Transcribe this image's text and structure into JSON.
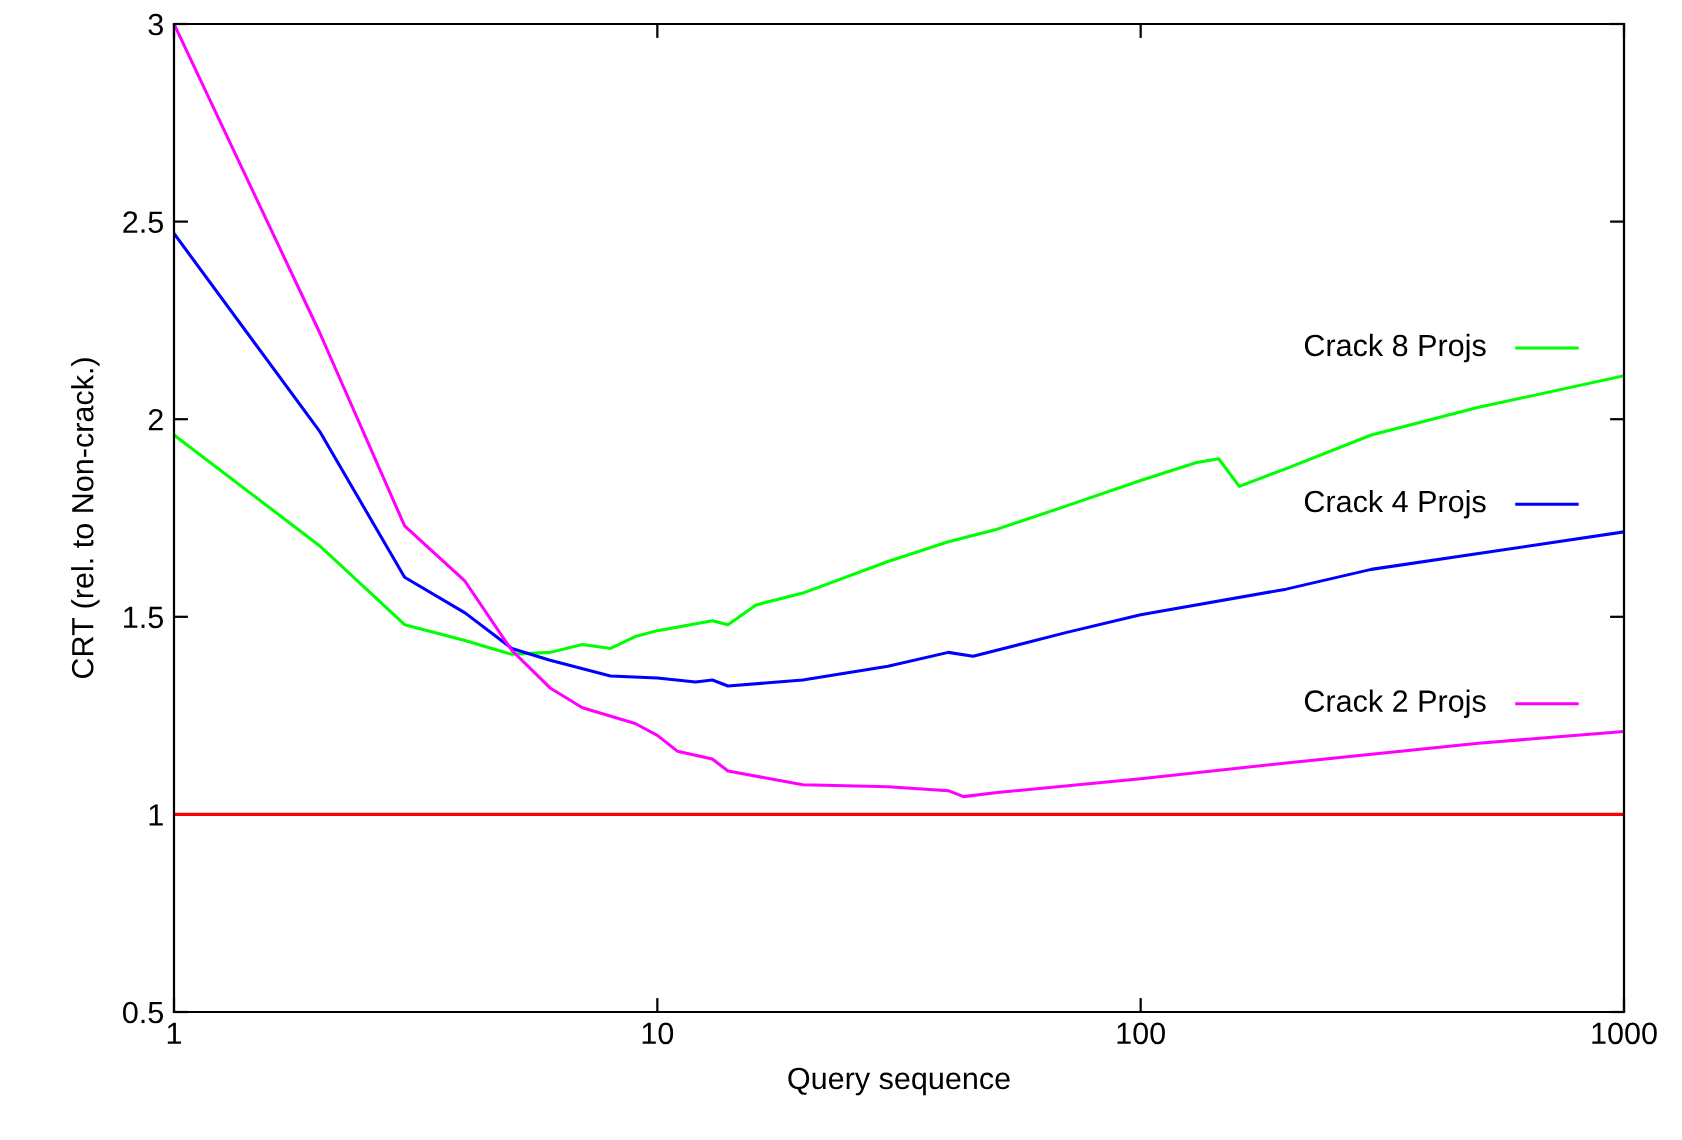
{
  "chart_data": {
    "type": "line",
    "xlabel": "Query sequence",
    "ylabel": "CRT (rel. to Non-crack.)",
    "log": "x",
    "xlim": [
      1,
      1000
    ],
    "xticks": [
      1,
      10,
      100,
      1000
    ],
    "ylim": [
      0.5,
      3
    ],
    "yticks": [
      0.5,
      1,
      1.5,
      2,
      2.5,
      3
    ],
    "grid": false,
    "legend": "right",
    "marker": "none",
    "line_style": "solid",
    "series": [
      {
        "name": "Crack 8 Projs",
        "color": "#00ff00",
        "x": [
          1,
          2,
          3,
          4,
          5,
          6,
          7,
          8,
          9,
          10,
          13,
          14,
          16,
          20,
          30,
          40,
          50,
          70,
          100,
          130,
          145,
          160,
          200,
          300,
          500,
          1000
        ],
        "values": [
          1.96,
          1.68,
          1.48,
          1.44,
          1.405,
          1.41,
          1.43,
          1.42,
          1.45,
          1.465,
          1.49,
          1.48,
          1.53,
          1.56,
          1.64,
          1.69,
          1.72,
          1.78,
          1.845,
          1.89,
          1.9,
          1.83,
          1.875,
          1.96,
          2.03,
          2.11
        ]
      },
      {
        "name": "Crack 4 Projs",
        "color": "#0000ff",
        "x": [
          1,
          2,
          3,
          4,
          5,
          6,
          8,
          10,
          12,
          13,
          14,
          20,
          30,
          40,
          45,
          70,
          100,
          200,
          300,
          500,
          1000
        ],
        "values": [
          2.47,
          1.97,
          1.6,
          1.51,
          1.42,
          1.39,
          1.35,
          1.345,
          1.335,
          1.34,
          1.325,
          1.34,
          1.375,
          1.41,
          1.4,
          1.46,
          1.505,
          1.57,
          1.62,
          1.66,
          1.715
        ]
      },
      {
        "name": "Crack 2 Projs",
        "color": "#ff00ff",
        "x": [
          1,
          2,
          3,
          4,
          5,
          6,
          7,
          9,
          10,
          11,
          13,
          14,
          20,
          30,
          40,
          43,
          50,
          100,
          200,
          500,
          1000
        ],
        "values": [
          3.0,
          2.22,
          1.73,
          1.59,
          1.415,
          1.32,
          1.27,
          1.23,
          1.2,
          1.16,
          1.14,
          1.11,
          1.075,
          1.07,
          1.06,
          1.045,
          1.055,
          1.09,
          1.13,
          1.18,
          1.21
        ]
      },
      {
        "color": "#ff0000",
        "x": [
          1,
          1000
        ],
        "values": [
          1,
          1
        ]
      }
    ]
  }
}
